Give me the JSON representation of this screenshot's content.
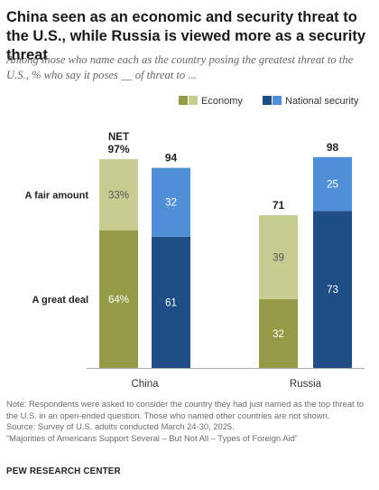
{
  "title": "China seen as an economic and security threat to the U.S., while Russia is viewed more as a security threat",
  "subtitle": "Among those who name each as the country posing the greatest threat to the U.S., % who say it poses __ of threat to ...",
  "chart_data": {
    "type": "bar",
    "stacked": true,
    "categories": [
      "China",
      "Russia"
    ],
    "row_labels": [
      "A fair amount",
      "A great deal"
    ],
    "series": [
      {
        "name": "Economy",
        "segments": [
          {
            "name": "A great deal",
            "values": [
              64,
              32
            ],
            "color": "#949a45"
          },
          {
            "name": "A fair amount",
            "values": [
              33,
              39
            ],
            "color": "#c7cd90"
          }
        ],
        "totals": [
          97,
          71
        ],
        "total_labels": [
          "97%",
          "71"
        ]
      },
      {
        "name": "National security",
        "segments": [
          {
            "name": "A great deal",
            "values": [
              61,
              73
            ],
            "color": "#1f4e87"
          },
          {
            "name": "A fair amount",
            "values": [
              32,
              25
            ],
            "color": "#4f8fd6"
          }
        ],
        "totals": [
          94,
          98
        ],
        "total_labels": [
          "94",
          "98"
        ]
      }
    ],
    "segment_labels": {
      "Economy": {
        "A great deal": [
          "64%",
          "32"
        ],
        "A fair amount": [
          "33%",
          "39"
        ]
      },
      "National security": {
        "A great deal": [
          "61",
          "73"
        ],
        "A fair amount": [
          "32",
          "25"
        ]
      }
    },
    "net_label": "NET",
    "ylim": [
      0,
      100
    ],
    "legend": {
      "placement": "top-right",
      "items": [
        "Economy",
        "National security"
      ]
    }
  },
  "notes": {
    "note": "Note: Respondents were asked to consider the country they had just named as the top threat to the U.S. in an open-ended question. Those who named other countries are not shown.",
    "source": "Source: Survey of U.S. adults conducted March 24-30, 2025.",
    "report": "“Majorities of Americans Support Several – But Not All – Types of Foreign Aid”"
  },
  "brand": "PEW RESEARCH CENTER"
}
